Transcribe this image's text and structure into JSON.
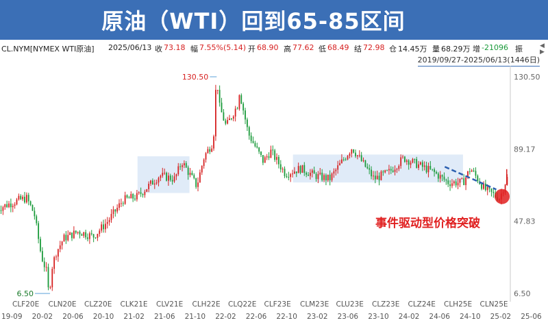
{
  "banner": {
    "title": "原油（WTI）回到65-85区间"
  },
  "quote": {
    "symbol": "CL.NYM[NYMEX WTI原油]",
    "date": "2025/06/13",
    "close_label": "收",
    "close": "73.18",
    "change_label": "幅",
    "change": "7.55%(5.14)",
    "open_label": "开",
    "open": "68.90",
    "high_label": "高",
    "high": "77.62",
    "low_label": "低",
    "low": "68.49",
    "settle_label": "结",
    "settle": "72.98",
    "position_label": "仓",
    "position": "14.45万",
    "volume_label": "量",
    "volume": "68.29万",
    "oi_change_label": "增",
    "oi_change": "-21096",
    "amp_label": "振",
    "range": "2019/09/27-2025/06/13(1446日)"
  },
  "colors": {
    "banner": "#3b6fb6",
    "up": "#d62020",
    "down": "#1a9a3a",
    "zone": "#dbe8f7",
    "trend": "#2c5fb0",
    "annotation": "#e02020"
  },
  "chart_data": {
    "type": "candlestick",
    "y_ticks": [
      "130.50",
      "89.17",
      "47.83",
      "6.50"
    ],
    "ylim": [
      6.5,
      130.5
    ],
    "x_tick_labels": [
      "19-09",
      "20-02",
      "20-06",
      "20-10",
      "21-02",
      "21-06",
      "21-10",
      "22-02",
      "22-06",
      "22-10",
      "23-02",
      "23-06",
      "23-10",
      "24-02",
      "24-06",
      "24-10",
      "25-02",
      "25-06"
    ],
    "contract_labels": [
      "CLF20E",
      "CLN20E",
      "CLZ20E",
      "CLK21E",
      "CLV21E",
      "CLH22E",
      "CLQ22E",
      "CLF23E",
      "CLM23E",
      "CLU23E",
      "CLZ23E",
      "CLZ24E",
      "CLH25E",
      "CLN25E"
    ],
    "max_label": "130.50",
    "min_label": "6.50",
    "series": [
      {
        "name": "",
        "x": [
          "2019-09",
          "2019-12",
          "2020-01",
          "2020-02",
          "2020-03",
          "2020-04",
          "2020-05",
          "2020-06",
          "2020-08",
          "2020-10",
          "2020-12",
          "2021-02",
          "2021-04",
          "2021-06",
          "2021-07",
          "2021-09",
          "2021-10",
          "2021-12",
          "2022-01",
          "2022-02",
          "2022-03",
          "2022-04",
          "2022-05",
          "2022-06",
          "2022-07",
          "2022-08",
          "2022-09",
          "2022-10",
          "2022-12",
          "2023-02",
          "2023-04",
          "2023-06",
          "2023-09",
          "2023-12",
          "2024-02",
          "2024-04",
          "2024-06",
          "2024-08",
          "2024-10",
          "2024-12",
          "2025-01",
          "2025-03",
          "2025-05",
          "2025-06"
        ],
        "close": [
          55,
          60,
          61,
          52,
          28,
          15,
          30,
          38,
          42,
          39,
          48,
          60,
          62,
          70,
          74,
          72,
          82,
          68,
          85,
          92,
          115,
          102,
          110,
          118,
          98,
          90,
          82,
          88,
          75,
          78,
          74,
          72,
          90,
          72,
          76,
          84,
          80,
          76,
          70,
          70,
          78,
          66,
          61,
          73.18
        ]
      }
    ],
    "zones": [
      {
        "from": "2021-04",
        "to": "2021-11",
        "low": 64,
        "high": 85
      },
      {
        "from": "2023-01",
        "to": "2024-12",
        "low": 70,
        "high": 86
      }
    ],
    "annotation": "事件驱动型价格突破"
  }
}
